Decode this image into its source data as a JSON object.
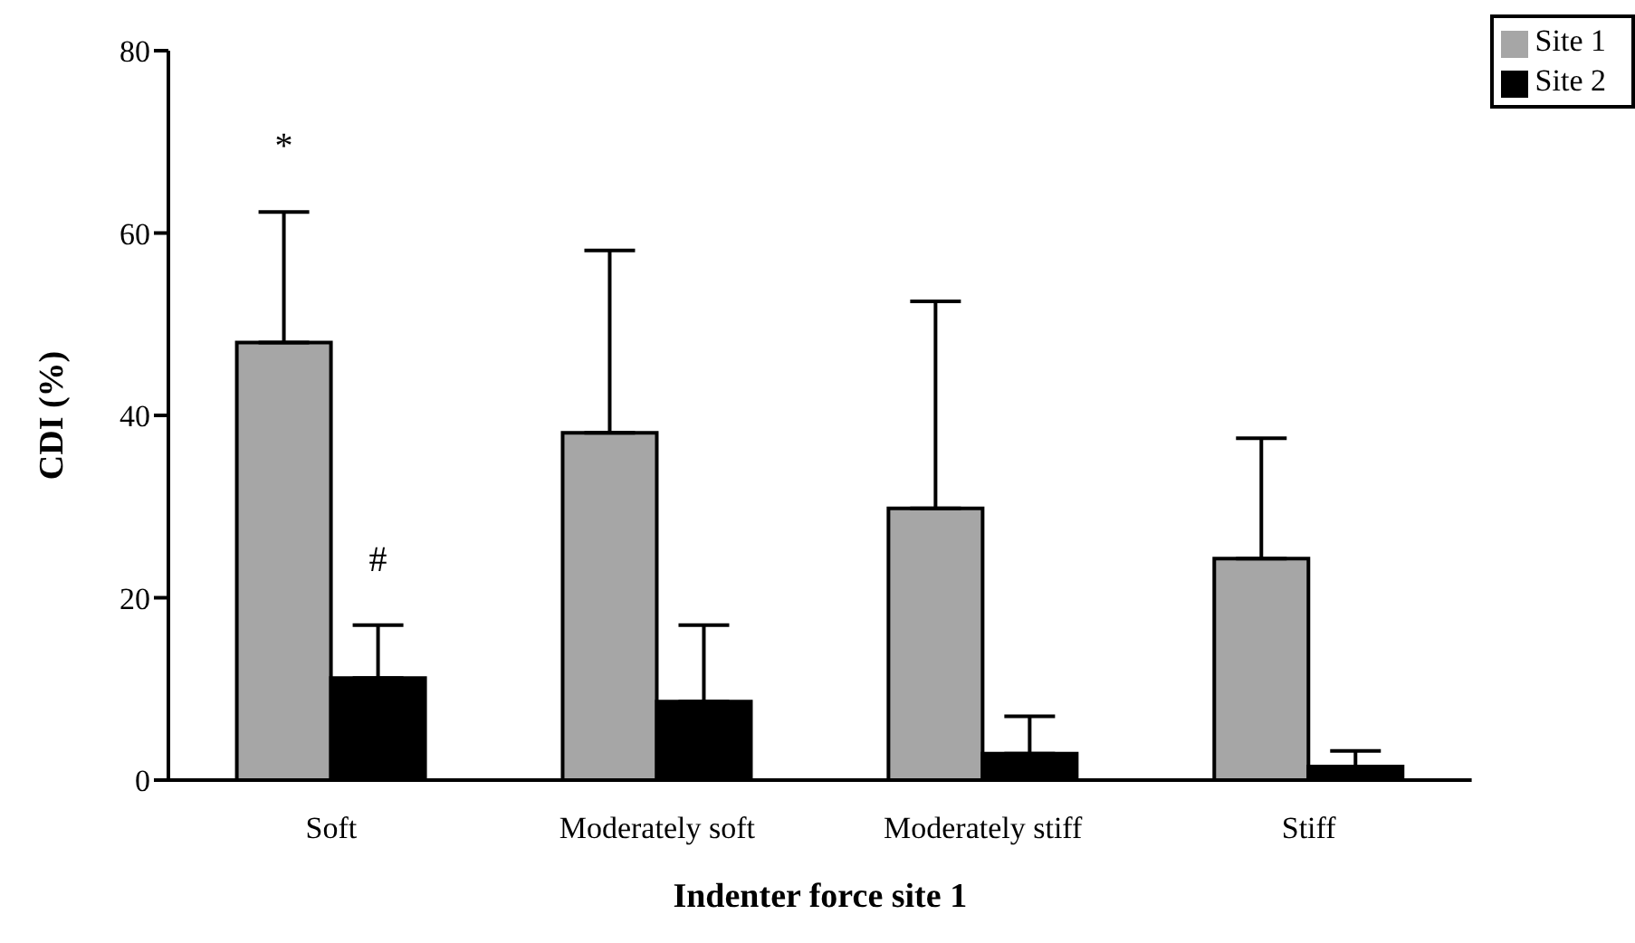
{
  "chart_data": {
    "type": "bar",
    "xlabel": "Indenter force site 1",
    "ylabel": "CDI (%)",
    "categories": [
      "Soft",
      "Moderately soft",
      "Moderately stiff",
      "Stiff"
    ],
    "series": [
      {
        "name": "Site 1",
        "color": "#a6a6a6",
        "values": [
          48,
          38.1,
          29.8,
          24.3
        ],
        "errors": [
          [
            48,
            62.3
          ],
          [
            38.1,
            58.1
          ],
          [
            29.8,
            52.5
          ],
          [
            24.3,
            37.5
          ]
        ]
      },
      {
        "name": "Site 2",
        "color": "#000000",
        "values": [
          11.2,
          8.6,
          2.9,
          1.5
        ],
        "errors": [
          [
            11.2,
            17
          ],
          [
            8.6,
            17
          ],
          [
            2.9,
            7
          ],
          [
            1.5,
            3.2
          ]
        ]
      }
    ],
    "ylim": [
      0,
      80
    ],
    "yticks": [
      0,
      20,
      40,
      60,
      80
    ],
    "grid": false,
    "legend": "top right",
    "annotations": [
      "*",
      "#"
    ]
  }
}
